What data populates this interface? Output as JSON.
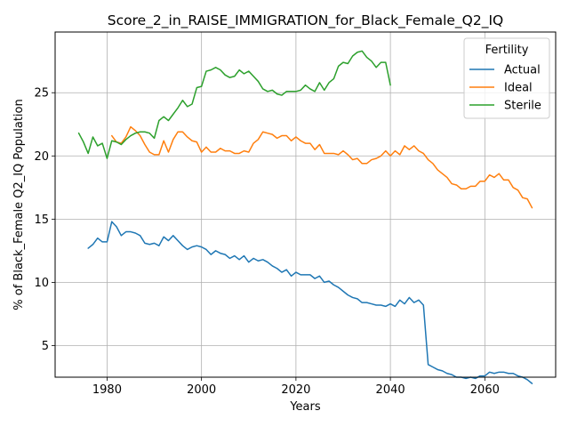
{
  "chart_data": {
    "type": "line",
    "title": "Score_2_in_RAISE_IMMIGRATION_for_Black_Female_Q2_IQ",
    "xlabel": "Years",
    "ylabel": "% of Black_Female Q2_IQ Population",
    "xlim": [
      1969,
      2075
    ],
    "ylim": [
      2.5,
      29.8
    ],
    "xticks": [
      1980,
      2000,
      2020,
      2040,
      2060
    ],
    "yticks": [
      5,
      10,
      15,
      20,
      25
    ],
    "grid": true,
    "legend": {
      "title": "Fertility",
      "position": "top-right"
    },
    "series": [
      {
        "name": "Actual",
        "color": "#1f77b4",
        "x": [
          1976,
          1977,
          1978,
          1979,
          1980,
          1981,
          1982,
          1983,
          1984,
          1985,
          1986,
          1987,
          1988,
          1989,
          1990,
          1991,
          1992,
          1993,
          1994,
          1995,
          1996,
          1997,
          1998,
          1999,
          2000,
          2001,
          2002,
          2003,
          2004,
          2005,
          2006,
          2007,
          2008,
          2009,
          2010,
          2011,
          2012,
          2013,
          2014,
          2015,
          2016,
          2017,
          2018,
          2019,
          2020,
          2021,
          2022,
          2023,
          2024,
          2025,
          2026,
          2027,
          2028,
          2029,
          2030,
          2031,
          2032,
          2033,
          2034,
          2035,
          2036,
          2037,
          2038,
          2039,
          2040,
          2041,
          2042,
          2043,
          2044,
          2045,
          2046,
          2047,
          2048,
          2049,
          2050,
          2051,
          2052,
          2053,
          2054,
          2055,
          2056,
          2057,
          2058,
          2059,
          2060,
          2061,
          2062,
          2063,
          2064,
          2065,
          2066,
          2067,
          2068,
          2069,
          2070
        ],
        "y": [
          12.7,
          13.0,
          13.5,
          13.2,
          13.2,
          14.8,
          14.4,
          13.7,
          14.0,
          14.0,
          13.9,
          13.7,
          13.1,
          13.0,
          13.1,
          12.9,
          13.6,
          13.3,
          13.7,
          13.3,
          12.9,
          12.6,
          12.8,
          12.9,
          12.8,
          12.6,
          12.2,
          12.5,
          12.3,
          12.2,
          11.9,
          12.1,
          11.8,
          12.1,
          11.6,
          11.9,
          11.7,
          11.8,
          11.6,
          11.3,
          11.1,
          10.8,
          11.0,
          10.5,
          10.8,
          10.6,
          10.6,
          10.6,
          10.3,
          10.5,
          10.0,
          10.1,
          9.8,
          9.6,
          9.3,
          9.0,
          8.8,
          8.7,
          8.4,
          8.4,
          8.3,
          8.2,
          8.2,
          8.1,
          8.3,
          8.1,
          8.6,
          8.3,
          8.8,
          8.4,
          8.6,
          8.2,
          3.5,
          3.3,
          3.1,
          3.0,
          2.8,
          2.7,
          2.5,
          2.5,
          2.4,
          2.5,
          2.4,
          2.6,
          2.6,
          2.9,
          2.8,
          2.9,
          2.9,
          2.8,
          2.8,
          2.6,
          2.5,
          2.3,
          2.0
        ]
      },
      {
        "name": "Ideal",
        "color": "#ff7f0e",
        "x": [
          1981,
          1982,
          1983,
          1984,
          1985,
          1986,
          1987,
          1988,
          1989,
          1990,
          1991,
          1992,
          1993,
          1994,
          1995,
          1996,
          1997,
          1998,
          1999,
          2000,
          2001,
          2002,
          2003,
          2004,
          2005,
          2006,
          2007,
          2008,
          2009,
          2010,
          2011,
          2012,
          2013,
          2014,
          2015,
          2016,
          2017,
          2018,
          2019,
          2020,
          2021,
          2022,
          2023,
          2024,
          2025,
          2026,
          2027,
          2028,
          2029,
          2030,
          2031,
          2032,
          2033,
          2034,
          2035,
          2036,
          2037,
          2038,
          2039,
          2040,
          2041,
          2042,
          2043,
          2044,
          2045,
          2046,
          2047,
          2048,
          2049,
          2050,
          2051,
          2052,
          2053,
          2054,
          2055,
          2056,
          2057,
          2058,
          2059,
          2060,
          2061,
          2062,
          2063,
          2064,
          2065,
          2066,
          2067,
          2068,
          2069,
          2070
        ],
        "y": [
          21.6,
          21.1,
          21.0,
          21.5,
          22.3,
          22.0,
          21.6,
          20.9,
          20.3,
          20.1,
          20.1,
          21.2,
          20.3,
          21.3,
          21.9,
          21.9,
          21.5,
          21.2,
          21.1,
          20.3,
          20.7,
          20.3,
          20.3,
          20.6,
          20.4,
          20.4,
          20.2,
          20.2,
          20.4,
          20.3,
          21.0,
          21.3,
          21.9,
          21.8,
          21.7,
          21.4,
          21.6,
          21.6,
          21.2,
          21.5,
          21.2,
          21.0,
          21.0,
          20.5,
          20.9,
          20.2,
          20.2,
          20.2,
          20.1,
          20.4,
          20.1,
          19.7,
          19.8,
          19.4,
          19.4,
          19.7,
          19.8,
          20.0,
          20.4,
          20.0,
          20.4,
          20.1,
          20.8,
          20.5,
          20.8,
          20.4,
          20.2,
          19.7,
          19.4,
          18.9,
          18.6,
          18.3,
          17.8,
          17.7,
          17.4,
          17.4,
          17.6,
          17.6,
          18.0,
          18.0,
          18.5,
          18.3,
          18.6,
          18.1,
          18.1,
          17.5,
          17.3,
          16.7,
          16.6,
          15.9
        ]
      },
      {
        "name": "Sterile",
        "color": "#2ca02c",
        "x": [
          1974,
          1975,
          1976,
          1977,
          1978,
          1979,
          1980,
          1981,
          1982,
          1983,
          1984,
          1985,
          1986,
          1987,
          1988,
          1989,
          1990,
          1991,
          1992,
          1993,
          1994,
          1995,
          1996,
          1997,
          1998,
          1999,
          2000,
          2001,
          2002,
          2003,
          2004,
          2005,
          2006,
          2007,
          2008,
          2009,
          2010,
          2011,
          2012,
          2013,
          2014,
          2015,
          2016,
          2017,
          2018,
          2019,
          2020,
          2021,
          2022,
          2023,
          2024,
          2025,
          2026,
          2027,
          2028,
          2029,
          2030,
          2031,
          2032,
          2033,
          2034,
          2035,
          2036,
          2037,
          2038,
          2039,
          2040
        ],
        "y": [
          21.8,
          21.1,
          20.2,
          21.5,
          20.8,
          21.0,
          19.8,
          21.2,
          21.1,
          20.9,
          21.3,
          21.6,
          21.8,
          21.9,
          21.9,
          21.8,
          21.4,
          22.8,
          23.1,
          22.8,
          23.3,
          23.8,
          24.4,
          23.9,
          24.1,
          25.4,
          25.5,
          26.7,
          26.8,
          27.0,
          26.8,
          26.4,
          26.2,
          26.3,
          26.8,
          26.5,
          26.7,
          26.3,
          25.9,
          25.3,
          25.1,
          25.2,
          24.9,
          24.8,
          25.1,
          25.1,
          25.1,
          25.2,
          25.6,
          25.3,
          25.1,
          25.8,
          25.2,
          25.8,
          26.1,
          27.1,
          27.4,
          27.3,
          27.9,
          28.2,
          28.3,
          27.8,
          27.5,
          27.0,
          27.4,
          27.4,
          25.6
        ]
      }
    ]
  }
}
